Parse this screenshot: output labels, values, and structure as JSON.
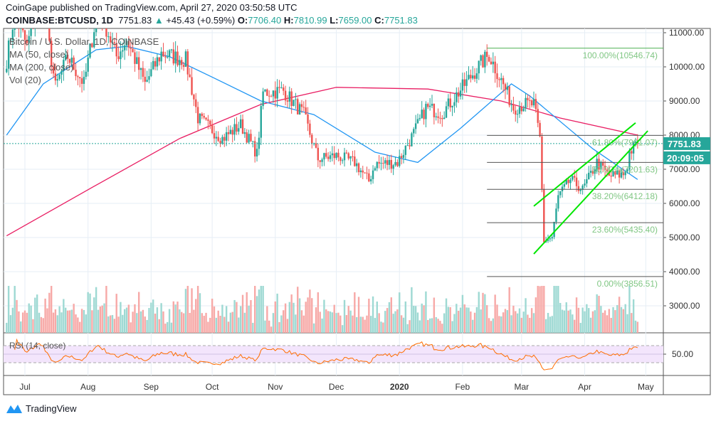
{
  "header": {
    "publisher": "CoinGape published on TradingView.com, April 27, 2020 03:50:58 UTC",
    "symbol": "COINBASE:BTCUSD, 1D",
    "last": "7751.83",
    "change": "+45.43 (+0.59%)",
    "o_label": "O:",
    "o": "7706.40",
    "h_label": "H:",
    "h": "7810.99",
    "l_label": "L:",
    "l": "7659.00",
    "c_label": "C:",
    "c": "7751.83"
  },
  "legend": {
    "title": "Bitcoin / U.S. Dollar, 1D, COINBASE",
    "ma50": "MA (50, close)",
    "ma200": "MA (200, close)",
    "vol": "Vol (20)",
    "rsi": "RSI (14, close)"
  },
  "price_tag": "7751.83",
  "countdown": "20:09:05",
  "footer": {
    "brand": "TradingView"
  },
  "colors": {
    "up": "#26a69a",
    "down": "#ef5350",
    "ma50": "#2196f3",
    "ma200": "#e91e63",
    "fib": "#4caf50",
    "channel": "#00e600",
    "rsi": "#ff6d00"
  },
  "chart_data": {
    "type": "candlestick",
    "ylim": [
      2300,
      11300
    ],
    "y_ticks": [
      "11000.00",
      "10000.00",
      "9000.00",
      "8000.00",
      "7000.00",
      "6000.00",
      "5000.00",
      "4000.00",
      "3000.00"
    ],
    "x_ticks": [
      [
        "Jul",
        "2019-07-01"
      ],
      [
        "Aug",
        "2019-08-01"
      ],
      [
        "Sep",
        "2019-09-01"
      ],
      [
        "Oct",
        "2019-10-01"
      ],
      [
        "Nov",
        "2019-11-01"
      ],
      [
        "Dec",
        "2019-12-01"
      ],
      [
        "2020",
        "2020-01-01"
      ],
      [
        "Feb",
        "2020-02-01"
      ],
      [
        "Mar",
        "2020-03-01"
      ],
      [
        "Apr",
        "2020-04-01"
      ],
      [
        "May",
        "2020-05-01"
      ]
    ],
    "close_path": [
      [
        "2019-06-22",
        10200
      ],
      [
        "2019-06-26",
        11600
      ],
      [
        "2019-07-02",
        10600
      ],
      [
        "2019-07-09",
        12200
      ],
      [
        "2019-07-16",
        9400
      ],
      [
        "2019-07-22",
        10300
      ],
      [
        "2019-07-30",
        9500
      ],
      [
        "2019-08-06",
        11800
      ],
      [
        "2019-08-15",
        10300
      ],
      [
        "2019-08-20",
        10800
      ],
      [
        "2019-08-29",
        9500
      ],
      [
        "2019-09-06",
        10400
      ],
      [
        "2019-09-18",
        10200
      ],
      [
        "2019-09-24",
        8500
      ],
      [
        "2019-10-06",
        7900
      ],
      [
        "2019-10-15",
        8300
      ],
      [
        "2019-10-23",
        7450
      ],
      [
        "2019-10-26",
        9250
      ],
      [
        "2019-11-05",
        9300
      ],
      [
        "2019-11-15",
        8600
      ],
      [
        "2019-11-22",
        7300
      ],
      [
        "2019-12-01",
        7400
      ],
      [
        "2019-12-10",
        7200
      ],
      [
        "2019-12-17",
        6650
      ],
      [
        "2019-12-20",
        7150
      ],
      [
        "2019-12-31",
        7200
      ],
      [
        "2020-01-08",
        8050
      ],
      [
        "2020-01-14",
        8800
      ],
      [
        "2020-01-22",
        8650
      ],
      [
        "2020-02-01",
        9400
      ],
      [
        "2020-02-10",
        10100
      ],
      [
        "2020-02-14",
        10350
      ],
      [
        "2020-02-20",
        9600
      ],
      [
        "2020-02-26",
        8800
      ],
      [
        "2020-03-02",
        8900
      ],
      [
        "2020-03-07",
        8900
      ],
      [
        "2020-03-10",
        7900
      ],
      [
        "2020-03-12",
        4900
      ],
      [
        "2020-03-16",
        5000
      ],
      [
        "2020-03-19",
        6200
      ],
      [
        "2020-03-25",
        6700
      ],
      [
        "2020-03-31",
        6400
      ],
      [
        "2020-04-07",
        7200
      ],
      [
        "2020-04-13",
        6800
      ],
      [
        "2020-04-20",
        6850
      ],
      [
        "2020-04-22",
        7100
      ],
      [
        "2020-04-23",
        7500
      ],
      [
        "2020-04-27",
        7751.83
      ]
    ],
    "ma50": [
      [
        "2019-06-22",
        8000
      ],
      [
        "2019-07-10",
        9500
      ],
      [
        "2019-08-05",
        10500
      ],
      [
        "2019-08-20",
        10600
      ],
      [
        "2019-09-10",
        10300
      ],
      [
        "2019-10-01",
        9700
      ],
      [
        "2019-10-25",
        9000
      ],
      [
        "2019-11-20",
        8600
      ],
      [
        "2019-12-20",
        7500
      ],
      [
        "2020-01-10",
        7200
      ],
      [
        "2020-01-31",
        8200
      ],
      [
        "2020-02-25",
        9500
      ],
      [
        "2020-03-05",
        9150
      ],
      [
        "2020-04-05",
        7600
      ],
      [
        "2020-04-27",
        6700
      ]
    ],
    "ma200": [
      [
        "2019-06-22",
        5050
      ],
      [
        "2019-08-01",
        6400
      ],
      [
        "2019-09-15",
        7900
      ],
      [
        "2019-10-25",
        8900
      ],
      [
        "2019-12-01",
        9400
      ],
      [
        "2020-01-15",
        9350
      ],
      [
        "2020-02-20",
        9000
      ],
      [
        "2020-03-20",
        8500
      ],
      [
        "2020-04-27",
        8000
      ]
    ],
    "fib": {
      "from": "2020-02-13",
      "levels": [
        [
          "100.00%(10546.74)",
          10546.74
        ],
        [
          "61.80%(7991.07)",
          7991.07
        ],
        [
          "50.00%(7201.63)",
          7201.63
        ],
        [
          "38.20%(6412.18)",
          6412.18
        ],
        [
          "23.60%(5435.40)",
          5435.4
        ],
        [
          "0.00%(3856.51)",
          3856.51
        ]
      ]
    },
    "channel": [
      [
        [
          "2020-03-07",
          5920
        ],
        [
          "2020-04-26",
          8360
        ]
      ],
      [
        [
          "2020-03-07",
          4520
        ],
        [
          "2020-05-02",
          8125
        ]
      ]
    ],
    "rsi_ticks": [
      "50.00"
    ]
  }
}
